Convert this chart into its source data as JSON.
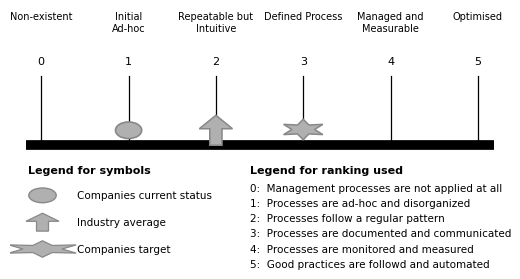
{
  "levels": [
    0,
    1,
    2,
    3,
    4,
    5
  ],
  "level_labels": [
    "Non-existent",
    "Initial\nAd-hoc",
    "Repeatable but\nIntuitive",
    "Defined Process",
    "Managed and\nMeasurable",
    "Optimised"
  ],
  "gray_fill": "#b0b0b0",
  "gray_edge": "#888888",
  "legend_symbols_title": "Legend for symbols",
  "legend_ranking_title": "Legend for ranking used",
  "legend_symbols": [
    "Companies current status",
    "Industry average",
    "Companies target"
  ],
  "legend_ranking": [
    "0:  Management processes are not applied at all",
    "1:  Processes are ad-hoc and disorganized",
    "2:  Processes follow a regular pattern",
    "3:  Processes are documented and communicated",
    "4:  Processes are monitored and measured",
    "5:  Good practices are followd and automated"
  ],
  "background_color": "#ffffff"
}
